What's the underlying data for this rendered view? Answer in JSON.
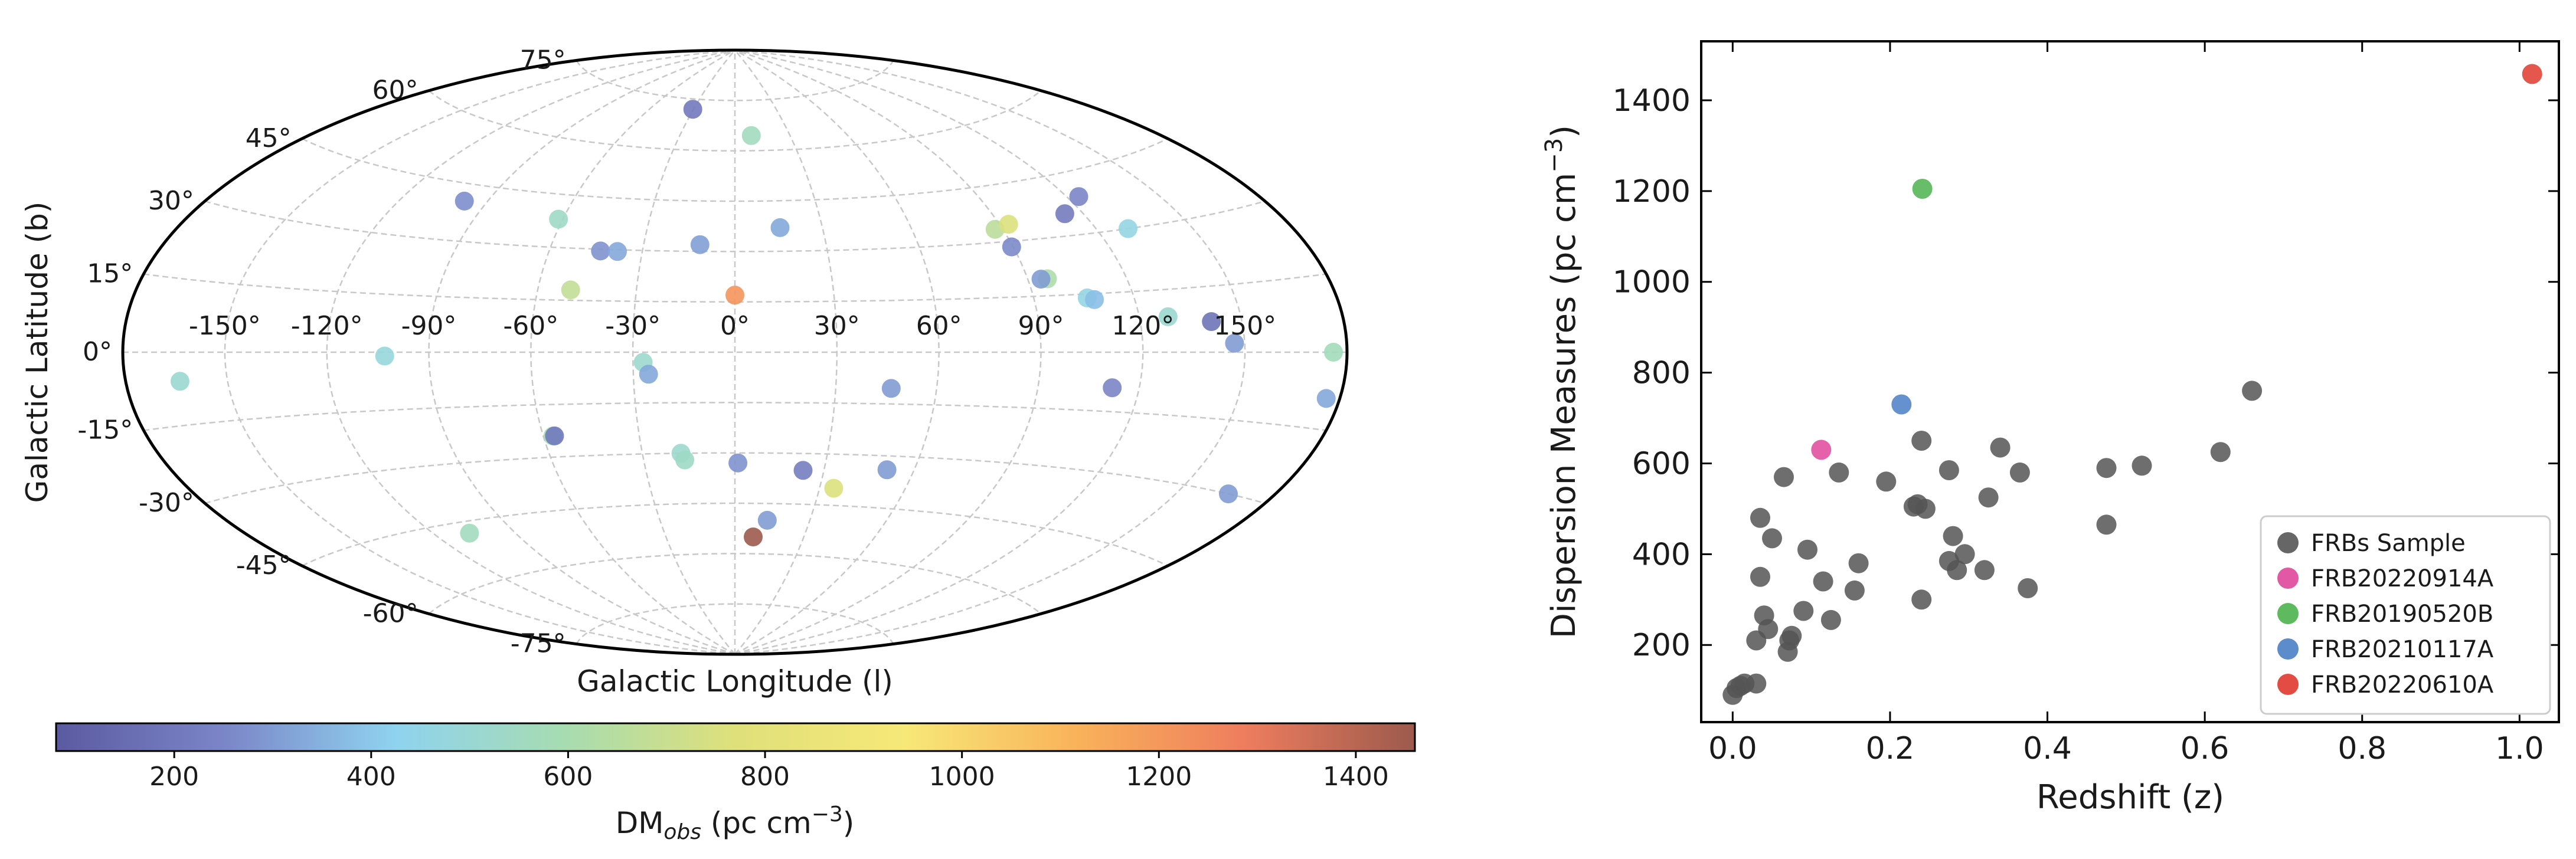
{
  "chart_data": [
    {
      "type": "scatter",
      "projection": "aitoff",
      "xlabel": "Galactic Longitude (l)",
      "ylabel": "Galactic Latitude (b)",
      "lon_ticks": [
        -150,
        -120,
        -90,
        -60,
        -30,
        0,
        30,
        60,
        90,
        120,
        150
      ],
      "lon_tick_labels": [
        "-150°",
        "-120°",
        "-90°",
        "-60°",
        "-30°",
        "0°",
        "30°",
        "60°",
        "90°",
        "120°",
        "150°"
      ],
      "lat_ticks": [
        -75,
        -60,
        -45,
        -30,
        -15,
        0,
        15,
        30,
        45,
        60,
        75
      ],
      "lat_tick_labels": [
        "-75°",
        "-60°",
        "-45°",
        "-30°",
        "-15°",
        "0°",
        "15°",
        "30°",
        "45°",
        "60°",
        "75°"
      ],
      "grid": true,
      "colorbar": {
        "label_main": "DM",
        "label_sub": "obs",
        "label_unit": " (pc cm",
        "label_exp": "−3",
        "label_close": ")",
        "range": [
          80,
          1460
        ],
        "ticks": [
          200,
          400,
          600,
          800,
          1000,
          1200,
          1400
        ],
        "tick_labels": [
          "200",
          "400",
          "600",
          "800",
          "1000",
          "1200",
          "1400"
        ],
        "colormap": [
          "#5b5aa0",
          "#7b86c8",
          "#8fd3ef",
          "#a7dcb0",
          "#dfe07a",
          "#f7e878",
          "#f9b35a",
          "#ee7d5e",
          "#9c5a4d"
        ]
      },
      "points": [
        {
          "l": -30.5,
          "b": 72,
          "dm": 200
        },
        {
          "l": 9,
          "b": 64.5,
          "dm": 560
        },
        {
          "l": -98,
          "b": 40.5,
          "dm": 270
        },
        {
          "l": -61.5,
          "b": 38,
          "dm": 540
        },
        {
          "l": -43.5,
          "b": 29.5,
          "dm": 280
        },
        {
          "l": -38,
          "b": 29.5,
          "dm": 330
        },
        {
          "l": -11.5,
          "b": 32,
          "dm": 310
        },
        {
          "l": 15.5,
          "b": 37,
          "dm": 330
        },
        {
          "l": -50,
          "b": 18,
          "dm": 680
        },
        {
          "l": 0,
          "b": 17,
          "dm": 1210
        },
        {
          "l": 87.5,
          "b": 33.5,
          "dm": 660
        },
        {
          "l": 93,
          "b": 34.5,
          "dm": 760
        },
        {
          "l": 114,
          "b": 35.5,
          "dm": 210
        },
        {
          "l": 124,
          "b": 39,
          "dm": 250
        },
        {
          "l": 89.5,
          "b": 28.5,
          "dm": 260
        },
        {
          "l": 130,
          "b": 30,
          "dm": 460
        },
        {
          "l": 96,
          "b": 19.5,
          "dm": 620
        },
        {
          "l": 94,
          "b": 19.5,
          "dm": 300
        },
        {
          "l": 106,
          "b": 14,
          "dm": 460
        },
        {
          "l": 108,
          "b": 13.5,
          "dm": 380
        },
        {
          "l": 128.5,
          "b": 8.5,
          "dm": 510
        },
        {
          "l": 141,
          "b": 7,
          "dm": 180
        },
        {
          "l": 147,
          "b": 2,
          "dm": 300
        },
        {
          "l": 176,
          "b": 0,
          "dm": 570
        },
        {
          "l": 176,
          "b": -9,
          "dm": 330
        },
        {
          "l": -164,
          "b": -6,
          "dm": 510
        },
        {
          "l": -103,
          "b": -1,
          "dm": 480
        },
        {
          "l": -27,
          "b": -3,
          "dm": 520
        },
        {
          "l": -25.5,
          "b": -6.5,
          "dm": 330
        },
        {
          "l": 46.5,
          "b": -10.5,
          "dm": 300
        },
        {
          "l": 112,
          "b": -9,
          "dm": 250
        },
        {
          "l": -57,
          "b": -24,
          "dm": 580
        },
        {
          "l": -56.5,
          "b": -24,
          "dm": 200
        },
        {
          "l": -17.5,
          "b": -30,
          "dm": 520
        },
        {
          "l": -16.5,
          "b": -32,
          "dm": 540
        },
        {
          "l": 1,
          "b": -33,
          "dm": 280
        },
        {
          "l": 23,
          "b": -35,
          "dm": 220
        },
        {
          "l": 51,
          "b": -34,
          "dm": 300
        },
        {
          "l": 35,
          "b": -40,
          "dm": 760
        },
        {
          "l": 166,
          "b": -30,
          "dm": 300
        },
        {
          "l": -107,
          "b": -48,
          "dm": 560
        },
        {
          "l": 13,
          "b": -50,
          "dm": 300
        },
        {
          "l": 8,
          "b": -55,
          "dm": 1460
        }
      ]
    },
    {
      "type": "scatter",
      "xlabel": "Redshift (z)",
      "ylabel": "Dispersion Measures (pc cm",
      "ylabel_exp": "−3",
      "ylabel_close": ")",
      "xlim": [
        -0.04,
        1.05
      ],
      "ylim": [
        30,
        1530
      ],
      "xticks": [
        0.0,
        0.2,
        0.4,
        0.6,
        0.8,
        1.0
      ],
      "xtick_labels": [
        "0.0",
        "0.2",
        "0.4",
        "0.6",
        "0.8",
        "1.0"
      ],
      "yticks": [
        200,
        400,
        600,
        800,
        1000,
        1200,
        1400
      ],
      "ytick_labels": [
        "200",
        "400",
        "600",
        "800",
        "1000",
        "1200",
        "1400"
      ],
      "legend_position": "lower-right",
      "series": [
        {
          "name": "FRBs Sample",
          "color": "#555555",
          "points": [
            [
              0.0,
              90
            ],
            [
              0.005,
              105
            ],
            [
              0.01,
              110
            ],
            [
              0.015,
              115
            ],
            [
              0.03,
              115
            ],
            [
              0.03,
              210
            ],
            [
              0.035,
              350
            ],
            [
              0.035,
              480
            ],
            [
              0.04,
              265
            ],
            [
              0.045,
              235
            ],
            [
              0.05,
              435
            ],
            [
              0.065,
              570
            ],
            [
              0.07,
              185
            ],
            [
              0.072,
              210
            ],
            [
              0.075,
              220
            ],
            [
              0.09,
              275
            ],
            [
              0.095,
              410
            ],
            [
              0.115,
              340
            ],
            [
              0.125,
              255
            ],
            [
              0.135,
              580
            ],
            [
              0.155,
              320
            ],
            [
              0.16,
              380
            ],
            [
              0.195,
              560
            ],
            [
              0.23,
              505
            ],
            [
              0.235,
              510
            ],
            [
              0.24,
              300
            ],
            [
              0.24,
              650
            ],
            [
              0.245,
              500
            ],
            [
              0.275,
              585
            ],
            [
              0.275,
              385
            ],
            [
              0.28,
              440
            ],
            [
              0.285,
              365
            ],
            [
              0.295,
              400
            ],
            [
              0.32,
              365
            ],
            [
              0.325,
              525
            ],
            [
              0.34,
              635
            ],
            [
              0.365,
              580
            ],
            [
              0.375,
              325
            ],
            [
              0.475,
              465
            ],
            [
              0.475,
              590
            ],
            [
              0.52,
              595
            ],
            [
              0.62,
              625
            ],
            [
              0.66,
              760
            ]
          ]
        },
        {
          "name": "FRB20220914A",
          "color": "#e0469b",
          "points": [
            [
              0.1125,
              630
            ]
          ]
        },
        {
          "name": "FRB20190520B",
          "color": "#4db34d",
          "points": [
            [
              0.241,
              1205
            ]
          ]
        },
        {
          "name": "FRB20210117A",
          "color": "#4a7fc7",
          "points": [
            [
              0.2145,
              730
            ]
          ]
        },
        {
          "name": "FRB20220610A",
          "color": "#e0392e",
          "points": [
            [
              1.016,
              1458
            ]
          ]
        }
      ]
    }
  ]
}
